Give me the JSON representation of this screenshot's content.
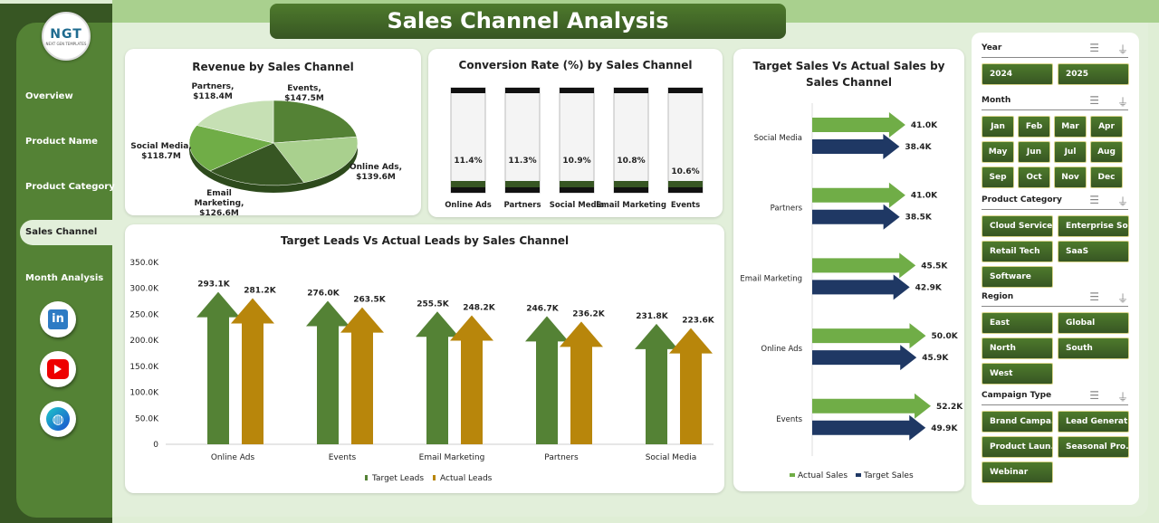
{
  "title": "Sales Channel Analysis",
  "logo": {
    "text": "NGT",
    "sub": "NEXT GEN TEMPLATES"
  },
  "nav": [
    {
      "label": "Overview"
    },
    {
      "label": "Product Name"
    },
    {
      "label": "Product Category"
    },
    {
      "label": "Sales Channel",
      "active": true
    },
    {
      "label": "Month Analysis"
    }
  ],
  "social": [
    "linkedin-icon",
    "youtube-icon",
    "globe-icon"
  ],
  "slicers": [
    {
      "title": "Year",
      "items": [
        "2024",
        "2025"
      ]
    },
    {
      "title": "Month",
      "items": [
        "Jan",
        "Feb",
        "Mar",
        "Apr",
        "May",
        "Jun",
        "Jul",
        "Aug",
        "Sep",
        "Oct",
        "Nov",
        "Dec"
      ]
    },
    {
      "title": "Product Category",
      "items": [
        "Cloud Service",
        "Enterprise So...",
        "Retail Tech",
        "SaaS",
        "Software"
      ]
    },
    {
      "title": "Region",
      "items": [
        "East",
        "Global",
        "North",
        "South",
        "West"
      ]
    },
    {
      "title": "Campaign Type",
      "items": [
        "Brand Campa...",
        "Lead Generat...",
        "Product Laun...",
        "Seasonal Pro...",
        "Webinar"
      ]
    }
  ],
  "chart_data": [
    {
      "type": "pie",
      "title": "Revenue by Sales Channel",
      "categories": [
        "Events",
        "Online Ads",
        "Email Marketing",
        "Social Media",
        "Partners"
      ],
      "values": [
        147.5,
        139.6,
        126.6,
        118.7,
        118.4
      ],
      "labels": [
        "Events, $147.5M",
        "Online Ads, $139.6M",
        "Email Marketing, $126.6M",
        "Social Media, $118.7M",
        "Partners, $118.4M"
      ],
      "colors": [
        "#548235",
        "#a9d08e",
        "#375623",
        "#70ad47",
        "#c6e0b4"
      ]
    },
    {
      "type": "bar",
      "title": "Conversion Rate (%) by Sales Channel",
      "categories": [
        "Online Ads",
        "Partners",
        "Social Media",
        "Email Marketing",
        "Events"
      ],
      "values": [
        11.4,
        11.3,
        10.9,
        10.8,
        10.6
      ],
      "labels": [
        "11.4%",
        "11.3%",
        "10.9%",
        "10.8%",
        "10.6%"
      ]
    },
    {
      "type": "bar",
      "title": "Target Leads Vs Actual Leads by Sales Channel",
      "categories": [
        "Online Ads",
        "Events",
        "Email Marketing",
        "Partners",
        "Social Media"
      ],
      "ylim": [
        0,
        350000
      ],
      "yticks": [
        "0",
        "50.0K",
        "100.0K",
        "150.0K",
        "200.0K",
        "250.0K",
        "300.0K",
        "350.0K"
      ],
      "legend": "bottom",
      "series": [
        {
          "name": "Target Leads",
          "color": "#548235",
          "values": [
            293100,
            276000,
            255500,
            246700,
            231800
          ],
          "labels": [
            "293.1K",
            "276.0K",
            "255.5K",
            "246.7K",
            "231.8K"
          ]
        },
        {
          "name": "Actual Leads",
          "color": "#b8860b",
          "values": [
            281200,
            263500,
            248200,
            236200,
            223600
          ],
          "labels": [
            "281.2K",
            "263.5K",
            "248.2K",
            "236.2K",
            "223.6K"
          ]
        }
      ]
    },
    {
      "type": "bar",
      "orientation": "horizontal",
      "title": "Target Sales Vs Actual Sales by Sales Channel",
      "categories": [
        "Social Media",
        "Partners",
        "Email Marketing",
        "Online Ads",
        "Events"
      ],
      "legend": "bottom",
      "series": [
        {
          "name": "Actual Sales",
          "color": "#70ad47",
          "values": [
            41.0,
            41.0,
            45.5,
            50.0,
            52.2
          ],
          "labels": [
            "41.0K",
            "41.0K",
            "45.5K",
            "50.0K",
            "52.2K"
          ]
        },
        {
          "name": "Target Sales",
          "color": "#1f3864",
          "values": [
            38.4,
            38.5,
            42.9,
            45.9,
            49.9
          ],
          "labels": [
            "38.4K",
            "38.5K",
            "42.9K",
            "45.9K",
            "49.9K"
          ]
        }
      ]
    }
  ]
}
